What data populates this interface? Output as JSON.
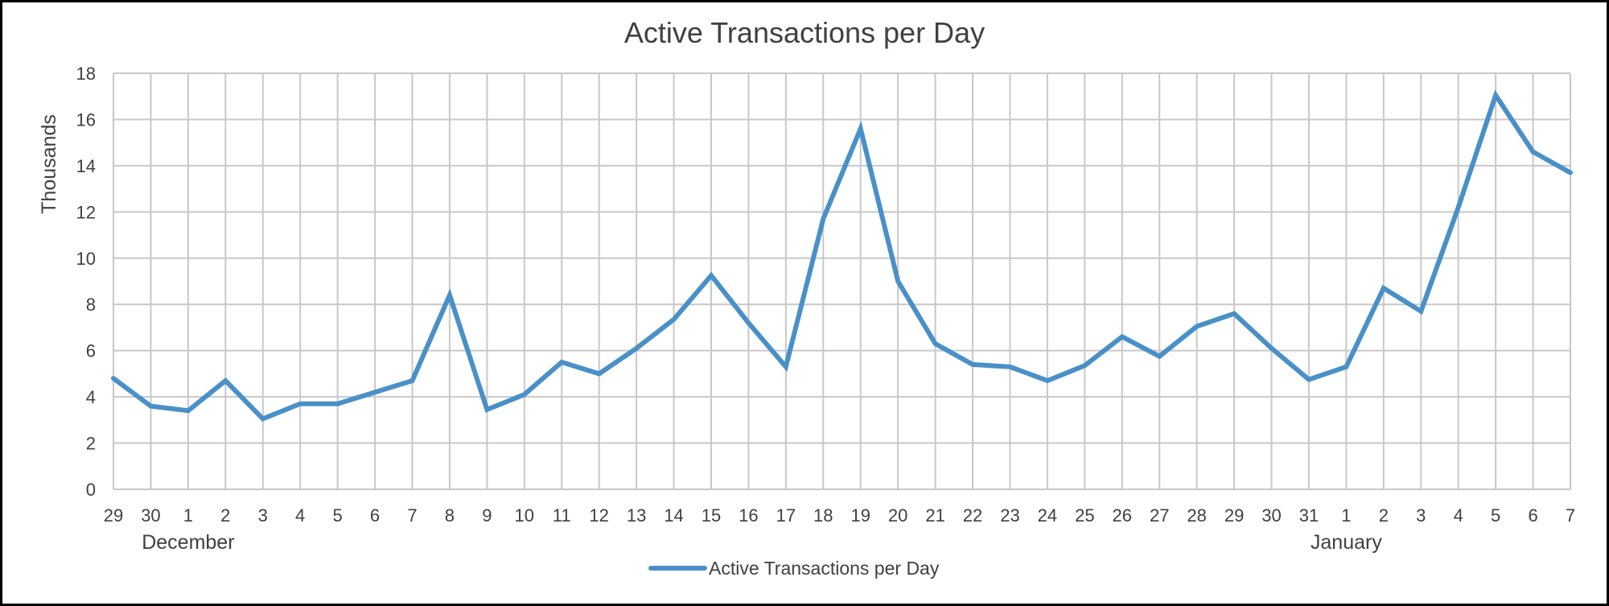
{
  "chart_data": {
    "type": "line",
    "title": "Active Transactions per Day",
    "ylabel": "Thousands",
    "xlabel": "",
    "ylim": [
      0,
      18
    ],
    "yticks": [
      0,
      2,
      4,
      6,
      8,
      10,
      12,
      14,
      16,
      18
    ],
    "grid": true,
    "legend_position": "bottom",
    "categories": [
      "29",
      "30",
      "1",
      "2",
      "3",
      "4",
      "5",
      "6",
      "7",
      "8",
      "9",
      "10",
      "11",
      "12",
      "13",
      "14",
      "15",
      "16",
      "17",
      "18",
      "19",
      "20",
      "21",
      "22",
      "23",
      "24",
      "25",
      "26",
      "27",
      "28",
      "29",
      "30",
      "31",
      "1",
      "2",
      "3",
      "4",
      "5",
      "6",
      "7"
    ],
    "month_labels": [
      {
        "label": "December",
        "category_index": 2
      },
      {
        "label": "January",
        "category_index": 33
      }
    ],
    "series": [
      {
        "name": "Active Transactions per Day",
        "color": "#4a90c8",
        "values": [
          4.8,
          3.6,
          3.4,
          4.7,
          3.05,
          3.7,
          3.7,
          4.2,
          4.7,
          8.4,
          3.45,
          4.1,
          5.5,
          5.0,
          6.1,
          7.35,
          9.25,
          7.2,
          5.3,
          11.7,
          15.6,
          9.0,
          6.3,
          5.4,
          5.3,
          4.7,
          5.35,
          6.6,
          5.75,
          7.05,
          7.6,
          6.1,
          4.75,
          5.3,
          8.7,
          7.7,
          12.2,
          17.05,
          14.6,
          13.7
        ]
      }
    ]
  }
}
